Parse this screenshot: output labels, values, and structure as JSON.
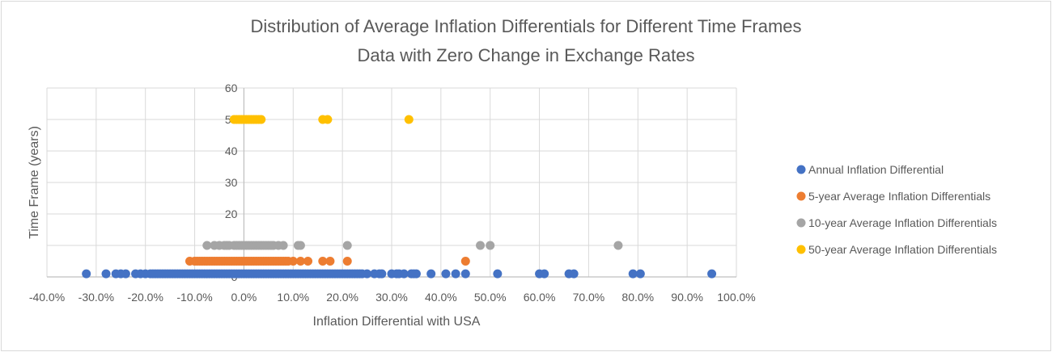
{
  "chart_data": {
    "type": "scatter",
    "title": "Distribution of Average Inflation Differentials for Different Time Frames",
    "subtitle": "Data with Zero Change in Exchange Rates",
    "xlabel": "Inflation Differential with USA",
    "ylabel": "Time Frame (years)",
    "xlim": [
      -0.4,
      1.0
    ],
    "ylim": [
      0,
      60
    ],
    "x_ticks": [
      "-40.0%",
      "-30.0%",
      "-20.0%",
      "-10.0%",
      "0.0%",
      "10.0%",
      "20.0%",
      "30.0%",
      "40.0%",
      "50.0%",
      "60.0%",
      "70.0%",
      "80.0%",
      "90.0%",
      "100.0%"
    ],
    "y_ticks": [
      "0",
      "10",
      "20",
      "30",
      "40",
      "50",
      "60"
    ],
    "grid": true,
    "legend_position": "right",
    "series": [
      {
        "name": "Annual Inflation Differential",
        "color": "#4472c4",
        "y": 1,
        "x": [
          -0.32,
          -0.28,
          -0.26,
          -0.25,
          -0.24,
          -0.22,
          -0.21,
          -0.2,
          -0.19,
          -0.185,
          -0.18,
          -0.175,
          -0.17,
          -0.165,
          -0.16,
          -0.155,
          -0.15,
          -0.145,
          -0.14,
          -0.135,
          -0.13,
          -0.125,
          -0.12,
          -0.115,
          -0.11,
          -0.105,
          -0.1,
          -0.095,
          -0.09,
          -0.085,
          -0.08,
          -0.075,
          -0.07,
          -0.065,
          -0.06,
          -0.055,
          -0.05,
          -0.045,
          -0.04,
          -0.035,
          -0.03,
          -0.025,
          -0.02,
          -0.015,
          -0.01,
          -0.005,
          0.0,
          0.005,
          0.01,
          0.015,
          0.02,
          0.025,
          0.03,
          0.035,
          0.04,
          0.045,
          0.05,
          0.055,
          0.06,
          0.065,
          0.07,
          0.075,
          0.08,
          0.085,
          0.09,
          0.095,
          0.1,
          0.105,
          0.11,
          0.115,
          0.12,
          0.125,
          0.13,
          0.135,
          0.14,
          0.145,
          0.15,
          0.155,
          0.16,
          0.165,
          0.17,
          0.175,
          0.18,
          0.185,
          0.19,
          0.195,
          0.2,
          0.205,
          0.21,
          0.215,
          0.22,
          0.225,
          0.23,
          0.235,
          0.24,
          0.25,
          0.265,
          0.275,
          0.28,
          0.3,
          0.31,
          0.315,
          0.325,
          0.34,
          0.345,
          0.35,
          0.38,
          0.41,
          0.43,
          0.45,
          0.515,
          0.6,
          0.61,
          0.66,
          0.67,
          0.79,
          0.805,
          0.95
        ]
      },
      {
        "name": "5-year Average Inflation Differentials",
        "color": "#ed7d31",
        "y": 5,
        "x": [
          -0.11,
          -0.1,
          -0.095,
          -0.09,
          -0.085,
          -0.08,
          -0.075,
          -0.07,
          -0.065,
          -0.06,
          -0.055,
          -0.05,
          -0.045,
          -0.04,
          -0.035,
          -0.03,
          -0.025,
          -0.02,
          -0.015,
          -0.01,
          -0.005,
          0.0,
          0.005,
          0.01,
          0.015,
          0.02,
          0.025,
          0.03,
          0.035,
          0.04,
          0.045,
          0.05,
          0.055,
          0.06,
          0.065,
          0.07,
          0.075,
          0.08,
          0.085,
          0.09,
          0.1,
          0.115,
          0.13,
          0.16,
          0.175,
          0.21,
          0.45
        ]
      },
      {
        "name": "10-year Average Inflation Differentials",
        "color": "#a5a5a5",
        "y": 10,
        "x": [
          -0.075,
          -0.06,
          -0.05,
          -0.04,
          -0.035,
          -0.03,
          -0.02,
          -0.015,
          -0.01,
          -0.005,
          0.0,
          0.005,
          0.01,
          0.015,
          0.02,
          0.025,
          0.03,
          0.035,
          0.04,
          0.045,
          0.05,
          0.055,
          0.06,
          0.07,
          0.08,
          0.11,
          0.115,
          0.21,
          0.48,
          0.5,
          0.76
        ]
      },
      {
        "name": "50-year Average Inflation Differentials",
        "color": "#ffc000",
        "y": 50,
        "x": [
          -0.02,
          -0.015,
          -0.01,
          -0.005,
          0.0,
          0.005,
          0.01,
          0.015,
          0.02,
          0.025,
          0.03,
          0.035,
          0.16,
          0.17,
          0.335
        ]
      }
    ]
  }
}
